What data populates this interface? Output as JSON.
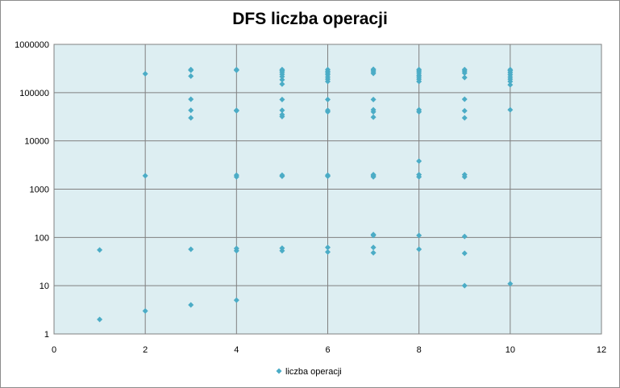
{
  "chart_data": {
    "type": "scatter",
    "title": "DFS liczba operacji",
    "xlabel": "",
    "ylabel": "",
    "xlim": [
      0,
      12
    ],
    "ylim": [
      1,
      1000000
    ],
    "y_scale": "log",
    "x_ticks": [
      "0",
      "2",
      "4",
      "6",
      "8",
      "10",
      "12"
    ],
    "y_ticks": [
      "1",
      "10",
      "100",
      "1000",
      "10000",
      "100000",
      "1000000"
    ],
    "grid": true,
    "legend_position": "bottom",
    "colors": {
      "series": "#4bacc6",
      "plot_bg": "#ddeef2",
      "grid": "#808080"
    },
    "series": [
      {
        "name": "liczba operacji",
        "points": [
          [
            1,
            2
          ],
          [
            1,
            55
          ],
          [
            2,
            3
          ],
          [
            2,
            1900
          ],
          [
            2,
            245000
          ],
          [
            3,
            4
          ],
          [
            3,
            57
          ],
          [
            3,
            30000
          ],
          [
            3,
            43000
          ],
          [
            3,
            73000
          ],
          [
            3,
            220000
          ],
          [
            3,
            290000
          ],
          [
            3,
            300000
          ],
          [
            4,
            5
          ],
          [
            4,
            53
          ],
          [
            4,
            59
          ],
          [
            4,
            1800
          ],
          [
            4,
            1950
          ],
          [
            4,
            42000
          ],
          [
            4,
            43000
          ],
          [
            4,
            290000
          ],
          [
            4,
            300000
          ],
          [
            5,
            53
          ],
          [
            5,
            60
          ],
          [
            5,
            1850
          ],
          [
            5,
            1950
          ],
          [
            5,
            32000
          ],
          [
            5,
            35000
          ],
          [
            5,
            43000
          ],
          [
            5,
            72000
          ],
          [
            5,
            150000
          ],
          [
            5,
            185000
          ],
          [
            5,
            215000
          ],
          [
            5,
            240000
          ],
          [
            5,
            265000
          ],
          [
            5,
            285000
          ],
          [
            5,
            300000
          ],
          [
            6,
            50
          ],
          [
            6,
            62
          ],
          [
            6,
            1850
          ],
          [
            6,
            1950
          ],
          [
            6,
            40000
          ],
          [
            6,
            43000
          ],
          [
            6,
            72000
          ],
          [
            6,
            170000
          ],
          [
            6,
            190000
          ],
          [
            6,
            210000
          ],
          [
            6,
            235000
          ],
          [
            6,
            255000
          ],
          [
            6,
            275000
          ],
          [
            6,
            300000
          ],
          [
            7,
            48
          ],
          [
            7,
            62
          ],
          [
            7,
            110
          ],
          [
            7,
            115
          ],
          [
            7,
            1800
          ],
          [
            7,
            1900
          ],
          [
            7,
            2000
          ],
          [
            7,
            31000
          ],
          [
            7,
            40000
          ],
          [
            7,
            44000
          ],
          [
            7,
            72000
          ],
          [
            7,
            250000
          ],
          [
            7,
            270000
          ],
          [
            7,
            290000
          ],
          [
            7,
            305000
          ],
          [
            8,
            57
          ],
          [
            8,
            110
          ],
          [
            8,
            1800
          ],
          [
            8,
            2000
          ],
          [
            8,
            3800
          ],
          [
            8,
            40000
          ],
          [
            8,
            44000
          ],
          [
            8,
            170000
          ],
          [
            8,
            190000
          ],
          [
            8,
            210000
          ],
          [
            8,
            230000
          ],
          [
            8,
            255000
          ],
          [
            8,
            280000
          ],
          [
            8,
            300000
          ],
          [
            9,
            10
          ],
          [
            9,
            47
          ],
          [
            9,
            105
          ],
          [
            9,
            1800
          ],
          [
            9,
            2000
          ],
          [
            9,
            30000
          ],
          [
            9,
            42000
          ],
          [
            9,
            73000
          ],
          [
            9,
            205000
          ],
          [
            9,
            255000
          ],
          [
            9,
            280000
          ],
          [
            9,
            300000
          ],
          [
            10,
            11
          ],
          [
            10,
            44000
          ],
          [
            10,
            145000
          ],
          [
            10,
            170000
          ],
          [
            10,
            190000
          ],
          [
            10,
            210000
          ],
          [
            10,
            235000
          ],
          [
            10,
            260000
          ],
          [
            10,
            285000
          ],
          [
            10,
            300000
          ]
        ]
      }
    ]
  }
}
